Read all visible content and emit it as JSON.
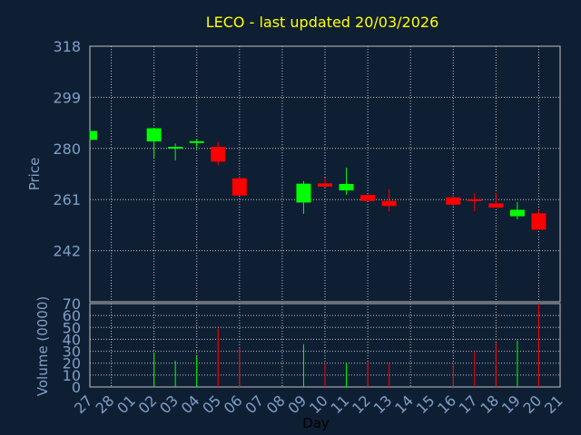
{
  "chart_data": {
    "type": "candlestick",
    "title": "LECO - last updated 20/03/2026",
    "xlabel": "Day",
    "price_panel": {
      "ylabel": "Price",
      "ylim": [
        223,
        318
      ],
      "yticks": [
        318,
        299,
        280,
        261,
        242
      ],
      "grid": true
    },
    "volume_panel": {
      "ylabel": "Volume (0000)",
      "ylim": [
        0,
        70
      ],
      "yticks": [
        70,
        60,
        50,
        40,
        30,
        20,
        10,
        0
      ],
      "grid": true
    },
    "x_tick_labels": [
      "27",
      "28",
      "01",
      "02",
      "03",
      "04",
      "05",
      "06",
      "07",
      "08",
      "09",
      "10",
      "11",
      "12",
      "13",
      "14",
      "15",
      "16",
      "17",
      "18",
      "19",
      "20",
      "21"
    ],
    "candles": [
      {
        "x": 0,
        "open": 283.2,
        "close": 286.5,
        "high": 286.5,
        "low": 283.2,
        "volume": 0
      },
      {
        "x": 3,
        "open": 282.6,
        "close": 287.5,
        "high": 287.5,
        "low": 276.5,
        "volume": 29
      },
      {
        "x": 4,
        "open": 280.0,
        "close": 280.6,
        "high": 281.8,
        "low": 275.6,
        "volume": 22
      },
      {
        "x": 5,
        "open": 282.1,
        "close": 282.7,
        "high": 283.4,
        "low": 279.8,
        "volume": 26
      },
      {
        "x": 6,
        "open": 280.6,
        "close": 275.1,
        "high": 282.4,
        "low": 273.6,
        "volume": 49
      },
      {
        "x": 7,
        "open": 268.9,
        "close": 262.5,
        "high": 269.7,
        "low": 262.5,
        "volume": 33
      },
      {
        "x": 10,
        "open": 259.9,
        "close": 266.9,
        "high": 267.9,
        "low": 255.7,
        "volume": 36
      },
      {
        "x": 11,
        "open": 267.0,
        "close": 265.8,
        "high": 269.1,
        "low": 265.5,
        "volume": 20
      },
      {
        "x": 12,
        "open": 264.4,
        "close": 266.8,
        "high": 272.8,
        "low": 262.8,
        "volume": 20
      },
      {
        "x": 13,
        "open": 262.7,
        "close": 260.5,
        "high": 263.0,
        "low": 260.4,
        "volume": 21
      },
      {
        "x": 14,
        "open": 260.5,
        "close": 258.6,
        "high": 264.8,
        "low": 256.6,
        "volume": 20
      },
      {
        "x": 17,
        "open": 261.8,
        "close": 259.1,
        "high": 263.0,
        "low": 258.6,
        "volume": 20
      },
      {
        "x": 18,
        "open": 261.1,
        "close": 260.8,
        "high": 263.4,
        "low": 256.6,
        "volume": 30
      },
      {
        "x": 19,
        "open": 259.6,
        "close": 258.0,
        "high": 263.4,
        "low": 258.0,
        "volume": 37
      },
      {
        "x": 20,
        "open": 254.8,
        "close": 257.2,
        "high": 260.1,
        "low": 253.6,
        "volume": 39
      },
      {
        "x": 21,
        "open": 255.9,
        "close": 249.8,
        "high": 257.2,
        "low": 249.8,
        "volume": 70
      }
    ],
    "colors": {
      "background": "#0f1f33",
      "plot_background": "#0f1f33",
      "grid": "#c0c0c0",
      "axis_text": "#7f9fc7",
      "title": "#ffff00",
      "up": "#00ff00",
      "down": "#ff0000",
      "up_volume": "#00ff00",
      "down_volume": "#ff0000"
    }
  }
}
